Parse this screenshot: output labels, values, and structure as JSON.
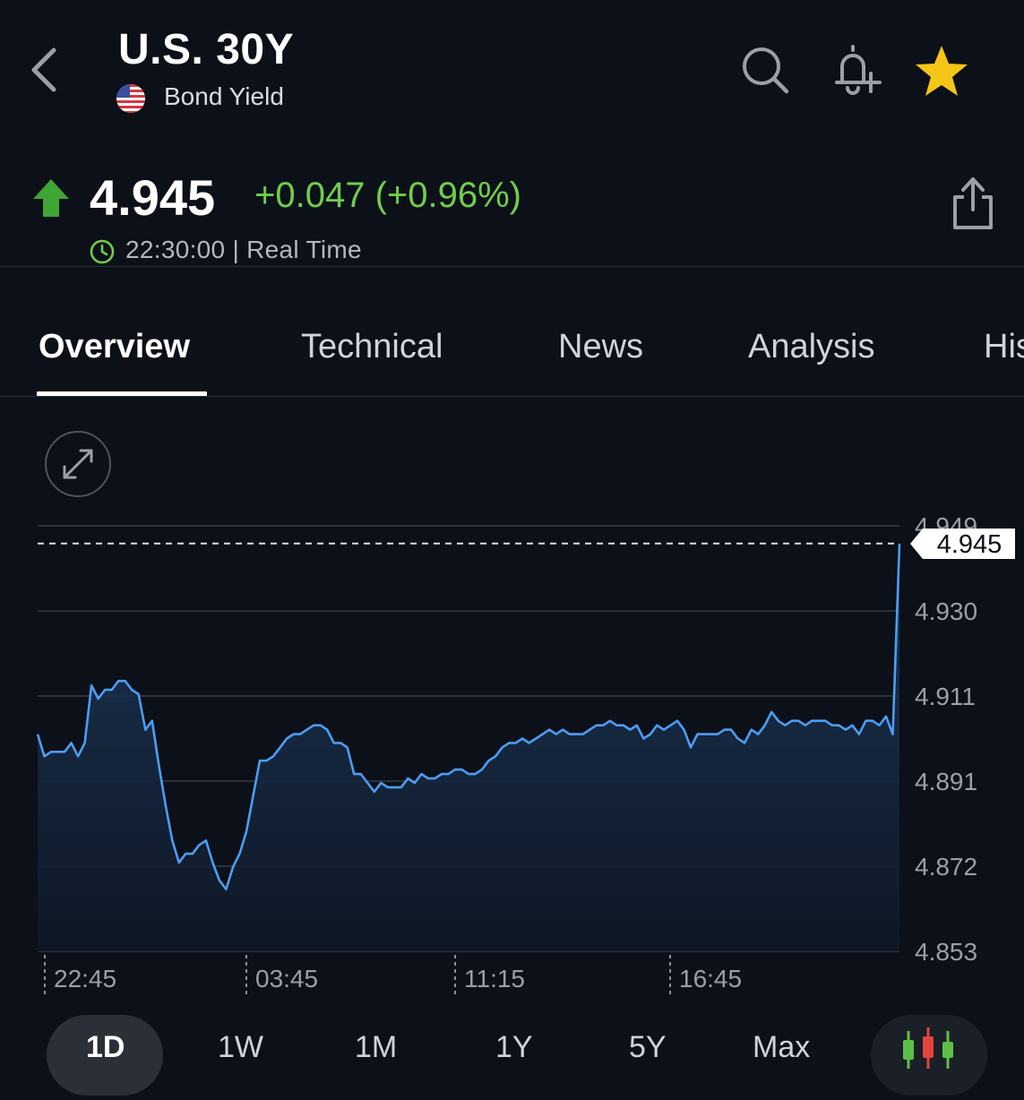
{
  "header": {
    "title": "U.S. 30Y",
    "subtitle": "Bond Yield",
    "icons": [
      "back-chevron-icon",
      "us-flag-icon",
      "search-icon",
      "bell-plus-icon",
      "star-icon"
    ],
    "star_color": "#f5c518"
  },
  "quote": {
    "price": "4.945",
    "change": "+0.047 (+0.96%)",
    "time": "22:30:00",
    "status": "Real Time",
    "time_status": "22:30:00 | Real Time",
    "up_color": "#3fa535",
    "change_color": "#6fce4b"
  },
  "tabs": [
    {
      "label": "Overview",
      "active": true
    },
    {
      "label": "Technical",
      "active": false
    },
    {
      "label": "News",
      "active": false
    },
    {
      "label": "Analysis",
      "active": false
    },
    {
      "label": "His",
      "active": false
    }
  ],
  "chart_data": {
    "type": "area",
    "line_color": "#4c9df5",
    "y_ticks": [
      "4.949",
      "4.930",
      "4.911",
      "4.891",
      "4.872",
      "4.853"
    ],
    "x_ticks": [
      "22:45",
      "03:45",
      "11:15",
      "16:45"
    ],
    "ylim": [
      4.853,
      4.949
    ],
    "last_value_label": "4.945",
    "last_value": 4.945,
    "grid": "horizontal",
    "values": [
      4.902,
      4.897,
      4.898,
      4.898,
      4.898,
      4.9,
      4.897,
      4.9,
      4.913,
      4.91,
      4.912,
      4.912,
      4.914,
      4.914,
      4.912,
      4.911,
      4.903,
      4.905,
      4.895,
      4.886,
      4.878,
      4.873,
      4.875,
      4.875,
      4.877,
      4.878,
      4.873,
      4.869,
      4.867,
      4.872,
      4.875,
      4.88,
      4.888,
      4.896,
      4.896,
      4.897,
      4.899,
      4.901,
      4.902,
      4.902,
      4.903,
      4.904,
      4.904,
      4.903,
      4.9,
      4.9,
      4.899,
      4.893,
      4.893,
      4.891,
      4.889,
      4.891,
      4.89,
      4.89,
      4.89,
      4.892,
      4.891,
      4.893,
      4.892,
      4.892,
      4.893,
      4.893,
      4.894,
      4.894,
      4.893,
      4.893,
      4.894,
      4.896,
      4.897,
      4.899,
      4.9,
      4.9,
      4.901,
      4.9,
      4.901,
      4.902,
      4.903,
      4.902,
      4.903,
      4.902,
      4.902,
      4.902,
      4.903,
      4.904,
      4.904,
      4.905,
      4.904,
      4.904,
      4.903,
      4.904,
      4.901,
      4.902,
      4.904,
      4.903,
      4.904,
      4.905,
      4.903,
      4.899,
      4.902,
      4.902,
      4.902,
      4.902,
      4.903,
      4.903,
      4.901,
      4.9,
      4.903,
      4.902,
      4.904,
      4.907,
      4.905,
      4.904,
      4.905,
      4.905,
      4.904,
      4.905,
      4.905,
      4.905,
      4.904,
      4.904,
      4.903,
      4.904,
      4.902,
      4.905,
      4.905,
      4.904,
      4.906,
      4.902,
      4.945
    ]
  },
  "ranges": [
    {
      "label": "1D",
      "active": true
    },
    {
      "label": "1W",
      "active": false
    },
    {
      "label": "1M",
      "active": false
    },
    {
      "label": "1Y",
      "active": false
    },
    {
      "label": "5Y",
      "active": false
    },
    {
      "label": "Max",
      "active": false
    }
  ],
  "candle_icon": "candlestick-chart-icon"
}
